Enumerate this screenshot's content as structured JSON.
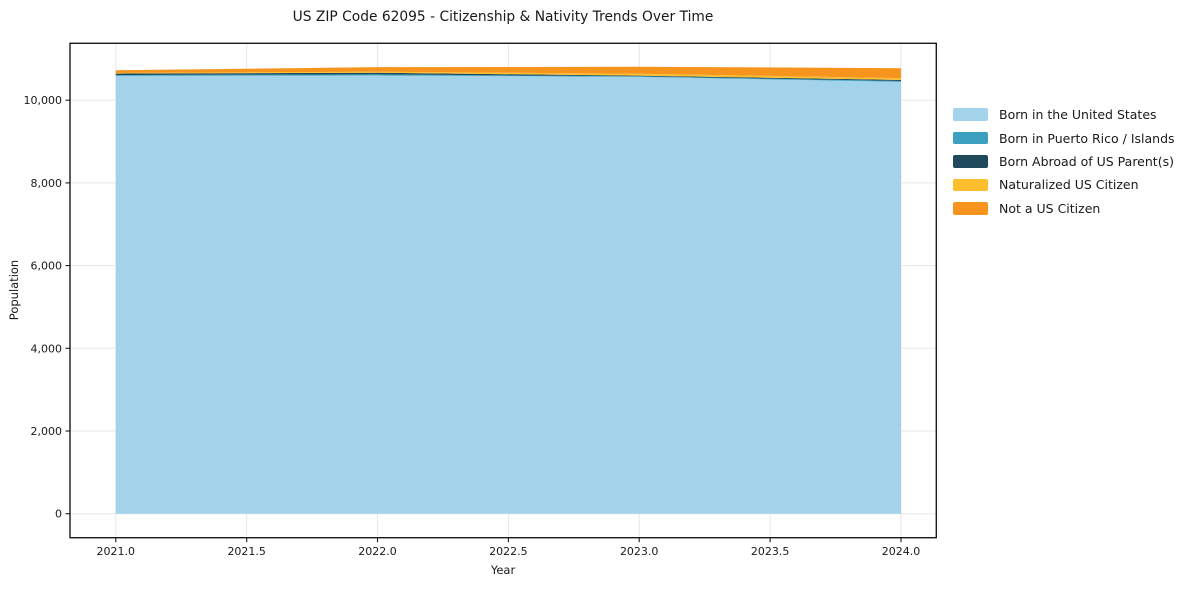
{
  "title": "US ZIP Code 62095 - Citizenship & Nativity Trends Over Time",
  "chart_data": {
    "type": "area",
    "stacked": true,
    "title": "US ZIP Code 62095 - Citizenship & Nativity Trends Over Time",
    "xlabel": "Year",
    "ylabel": "Population",
    "x": [
      2021,
      2022,
      2023,
      2024
    ],
    "series": [
      {
        "name": "Born in the United States",
        "color": "#a3d3ea",
        "values": [
          10590,
          10600,
          10565,
          10445
        ]
      },
      {
        "name": "Born in Puerto Rico / Islands",
        "color": "#3ba0bf",
        "values": [
          20,
          25,
          15,
          20
        ]
      },
      {
        "name": "Born Abroad of US Parent(s)",
        "color": "#21495c",
        "values": [
          35,
          40,
          15,
          25
        ]
      },
      {
        "name": "Naturalized US Citizen",
        "color": "#fcbe2c",
        "values": [
          15,
          25,
          45,
          45
        ]
      },
      {
        "name": "Not a US Citizen",
        "color": "#f6941e",
        "values": [
          65,
          110,
          170,
          240
        ]
      }
    ],
    "x_ticks": [
      2021.0,
      2021.5,
      2022.0,
      2022.5,
      2023.0,
      2023.5,
      2024.0
    ],
    "x_tick_labels": [
      "2021.0",
      "2021.5",
      "2022.0",
      "2022.5",
      "2023.0",
      "2023.5",
      "2024.0"
    ],
    "y_ticks": [
      0,
      2000,
      4000,
      6000,
      8000,
      10000
    ],
    "y_tick_labels": [
      "0",
      "2,000",
      "4,000",
      "6,000",
      "8,000",
      "10,000"
    ],
    "xlim": [
      2020.825,
      2024.135
    ],
    "ylim": [
      -580,
      11377
    ],
    "grid": true,
    "grid_color": "#e6e6e6",
    "axis_color": "#1a1a1a",
    "legend_position": "right-outside"
  }
}
